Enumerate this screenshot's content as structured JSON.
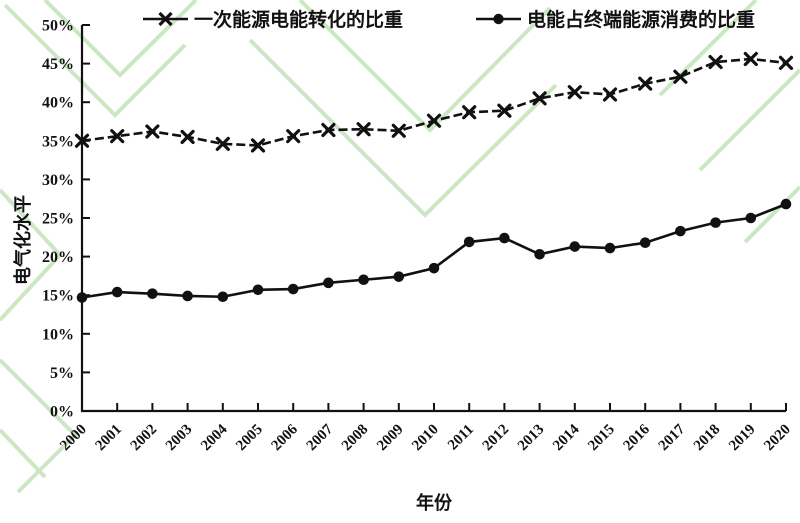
{
  "legend": {
    "items": [
      {
        "label": "一次能源电能转化的比重",
        "marker": "x"
      },
      {
        "label": "电能占终端能源消费的比重",
        "marker": "dot"
      }
    ]
  },
  "axes": {
    "y_title": "电气化水平",
    "x_title": "年份",
    "y_tick_labels": [
      "0%",
      "5%",
      "10%",
      "15%",
      "20%",
      "25%",
      "30%",
      "35%",
      "40%",
      "45%",
      "50%"
    ]
  },
  "chart_data": {
    "type": "line",
    "title": "",
    "xlabel": "年份",
    "ylabel": "电气化水平",
    "x": [
      "2000",
      "2001",
      "2002",
      "2003",
      "2004",
      "2005",
      "2006",
      "2007",
      "2008",
      "2009",
      "2010",
      "2011",
      "2012",
      "2013",
      "2014",
      "2015",
      "2016",
      "2017",
      "2018",
      "2019",
      "2020"
    ],
    "series": [
      {
        "name": "一次能源电能转化的比重",
        "marker": "x",
        "line_style": "dashed",
        "values": [
          35.0,
          35.6,
          36.2,
          35.5,
          34.6,
          34.4,
          35.6,
          36.4,
          36.5,
          36.3,
          37.6,
          38.7,
          38.9,
          40.5,
          41.3,
          41.0,
          42.4,
          43.3,
          45.2,
          45.6,
          45.1
        ]
      },
      {
        "name": "电能占终端能源消费的比重",
        "marker": "dot",
        "line_style": "solid",
        "values": [
          14.7,
          15.4,
          15.2,
          14.9,
          14.8,
          15.7,
          15.8,
          16.6,
          17.0,
          17.4,
          18.5,
          21.9,
          22.4,
          20.3,
          21.3,
          21.1,
          21.8,
          23.3,
          24.4,
          25.0,
          26.8
        ]
      }
    ],
    "ylim": [
      0,
      50
    ],
    "ytick_step": 5,
    "grid": false,
    "legend_position": "top"
  },
  "colors": {
    "line": "#111111",
    "text": "#111111",
    "watermark": "#cbe7c3"
  }
}
